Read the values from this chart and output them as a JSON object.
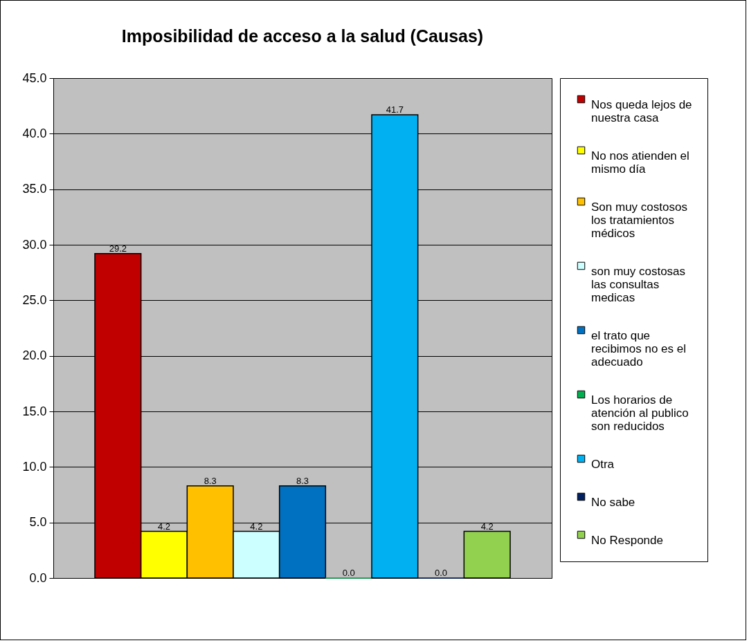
{
  "chart_data": {
    "type": "bar",
    "title": "Imposibilidad de acceso a la salud (Causas)",
    "categories": [
      null
    ],
    "series": [
      {
        "name": "Nos queda lejos de nuestra casa",
        "color": "#c00000",
        "values": [
          29.2
        ],
        "value_labels": [
          "29.2"
        ]
      },
      {
        "name": "No nos atienden el mismo día",
        "color": "#ffff00",
        "values": [
          4.2
        ],
        "value_labels": [
          "4.2"
        ]
      },
      {
        "name": "Son muy costosos los tratamientos médicos",
        "color": "#ffc000",
        "values": [
          8.3
        ],
        "value_labels": [
          "8.3"
        ]
      },
      {
        "name": "son muy costosas las consultas medicas",
        "color": "#ccffff",
        "values": [
          4.2
        ],
        "value_labels": [
          "4.2"
        ]
      },
      {
        "name": "el trato que recibimos no es el adecuado",
        "color": "#0070c0",
        "values": [
          8.3
        ],
        "value_labels": [
          "8.3"
        ]
      },
      {
        "name": "Los horarios de atención al publico son reducidos",
        "color": "#00b050",
        "values": [
          0
        ],
        "value_labels": [
          "0.0"
        ]
      },
      {
        "name": "Otra",
        "color": "#00b0f0",
        "values": [
          41.7
        ],
        "value_labels": [
          "41.7"
        ]
      },
      {
        "name": "No sabe",
        "color": "#002060",
        "values": [
          0
        ],
        "value_labels": [
          "0.0"
        ]
      },
      {
        "name": "No Responde",
        "color": "#92d050",
        "values": [
          4.2
        ],
        "value_labels": [
          "4.2"
        ]
      }
    ],
    "ylim": [
      0,
      45
    ],
    "yticks": [
      {
        "value": 0,
        "label": "0.0"
      },
      {
        "value": 5,
        "label": "5.0"
      },
      {
        "value": 10,
        "label": "10.0"
      },
      {
        "value": 15,
        "label": "15.0"
      },
      {
        "value": 20,
        "label": "20.0"
      },
      {
        "value": 25,
        "label": "25.0"
      },
      {
        "value": 30,
        "label": "30.0"
      },
      {
        "value": 35,
        "label": "35.0"
      },
      {
        "value": 40,
        "label": "40.0"
      },
      {
        "value": 45,
        "label": "45.0"
      }
    ],
    "grid": "y",
    "legend": "right"
  }
}
